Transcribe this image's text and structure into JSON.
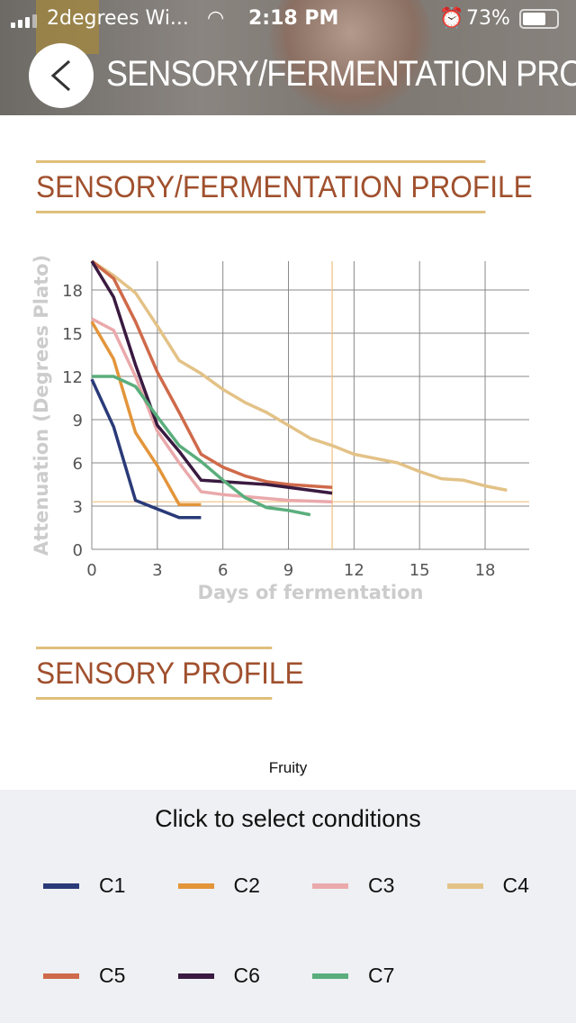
{
  "status_bar": {
    "carrier": "2degrees Wi...",
    "time": "2:18 PM",
    "battery": "73%",
    "battery_level": 0.73
  },
  "header": {
    "title": "SENSORY/FERMENTATION PROFILE"
  },
  "sections": {
    "fermentation_title": "SENSORY/FERMENTATION PROFILE",
    "sensory_title": "SENSORY PROFILE",
    "sensory_axis_label": "Fruity"
  },
  "chart_data": {
    "type": "line",
    "title": "",
    "xlabel": "Days of fermentation",
    "ylabel": "Attenuation (Degrees Plato)",
    "xlim": [
      0,
      20
    ],
    "ylim": [
      0,
      20
    ],
    "xticks": [
      0,
      3,
      6,
      9,
      12,
      15,
      18
    ],
    "yticks": [
      0,
      3,
      6,
      9,
      12,
      15,
      18
    ],
    "grid": true,
    "reference_lines": {
      "vertical_x": 11,
      "horizontal_y": 3.3,
      "color": "#f0c080"
    },
    "series": [
      {
        "name": "C1",
        "color": "#2a3a78",
        "x": [
          0,
          1,
          2,
          3,
          4,
          5
        ],
        "y": [
          11.8,
          8.5,
          3.4,
          2.8,
          2.2,
          2.2
        ]
      },
      {
        "name": "C2",
        "color": "#e3953a",
        "x": [
          0,
          1,
          2,
          3,
          4,
          5
        ],
        "y": [
          15.8,
          13.2,
          8.1,
          5.8,
          3.1,
          3.1
        ]
      },
      {
        "name": "C3",
        "color": "#eaa9ab",
        "x": [
          0,
          1,
          2,
          3,
          4,
          5,
          6,
          9,
          11
        ],
        "y": [
          16,
          15.2,
          12,
          8.2,
          6,
          4,
          3.8,
          3.4,
          3.3
        ]
      },
      {
        "name": "C4",
        "color": "#e3c287",
        "x": [
          0,
          1,
          2,
          3,
          4,
          5,
          6,
          7,
          8,
          9,
          10,
          11,
          12,
          13,
          14,
          15,
          16,
          17,
          18,
          19
        ],
        "y": [
          20,
          19,
          17.8,
          15.5,
          13.1,
          12.2,
          11.1,
          10.2,
          9.5,
          8.6,
          7.7,
          7.2,
          6.6,
          6.3,
          6,
          5.4,
          4.9,
          4.8,
          4.4,
          4.1
        ]
      },
      {
        "name": "C5",
        "color": "#cf6a4a",
        "x": [
          0,
          1,
          2,
          3,
          4,
          5,
          6,
          7,
          8,
          9,
          10,
          11
        ],
        "y": [
          20,
          18.8,
          15.8,
          12.3,
          9.5,
          6.6,
          5.7,
          5.1,
          4.7,
          4.5,
          4.4,
          4.3
        ]
      },
      {
        "name": "C6",
        "color": "#3a1a40",
        "x": [
          0,
          1,
          2,
          3,
          4,
          5,
          8,
          11
        ],
        "y": [
          20,
          17.5,
          12.8,
          8.6,
          6.8,
          4.8,
          4.5,
          3.9
        ]
      },
      {
        "name": "C7",
        "color": "#5aae7c",
        "x": [
          0,
          1,
          2,
          3,
          4,
          5,
          6,
          7,
          8,
          9,
          10
        ],
        "y": [
          12,
          12,
          11.3,
          9.2,
          7.2,
          6.1,
          4.8,
          3.6,
          2.9,
          2.7,
          2.4
        ]
      }
    ]
  },
  "legend_panel": {
    "title": "Click to select conditions"
  }
}
